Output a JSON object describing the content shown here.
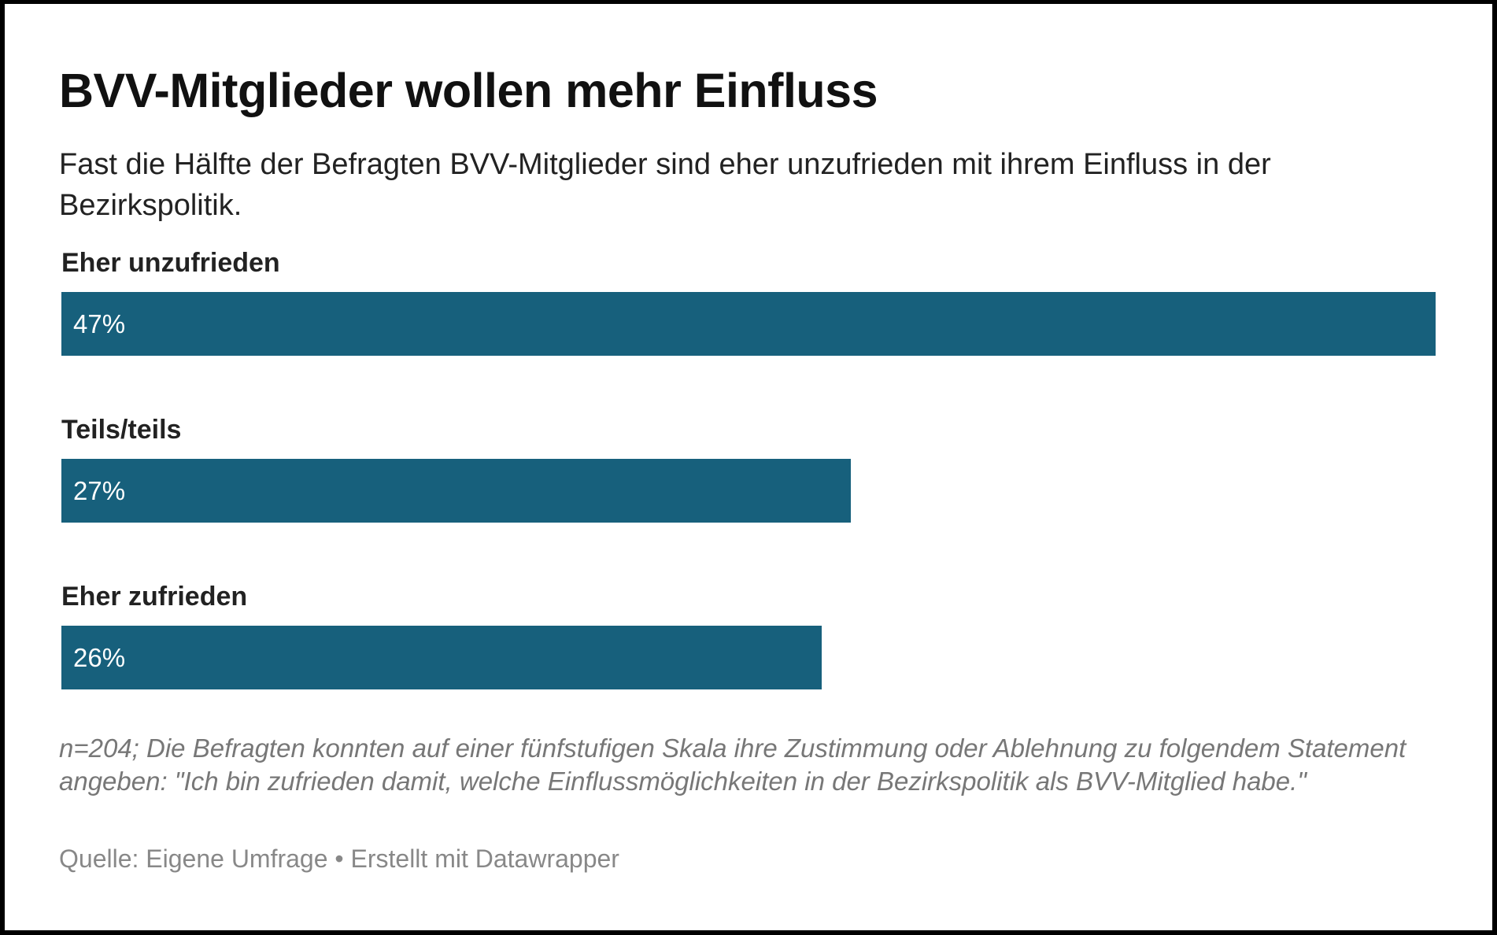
{
  "title": "BVV-Mitglieder wollen mehr Einfluss",
  "subtitle": "Fast die Hälfte der Befragten BVV-Mitglieder sind eher unzufrieden mit ihrem Einfluss in der Bezirkspolitik.",
  "notes": "n=204; Die Befragten konnten auf einer fünfstufigen Skala ihre Zustimmung oder Ablehnung zu folgendem Statement angeben: \"Ich bin zufrieden damit, welche Einflussmöglichkeiten in der Bezirkspolitik als BVV-Mitglied habe.\"",
  "footer": {
    "source_label": "Quelle:",
    "source": "Eigene Umfrage",
    "separator": "•",
    "credit": "Erstellt mit Datawrapper"
  },
  "colors": {
    "bar": "#17607c",
    "bar_text": "#ffffff"
  },
  "chart_data": {
    "type": "bar",
    "orientation": "horizontal",
    "categories": [
      "Eher unzufrieden",
      "Teils/teils",
      "Eher zufrieden"
    ],
    "values": [
      47,
      27,
      26
    ],
    "value_labels": [
      "47%",
      "27%",
      "26%"
    ],
    "unit": "%",
    "title": "BVV-Mitglieder wollen mehr Einfluss",
    "xlim": [
      0,
      47
    ],
    "grid": false,
    "legend": "none"
  }
}
